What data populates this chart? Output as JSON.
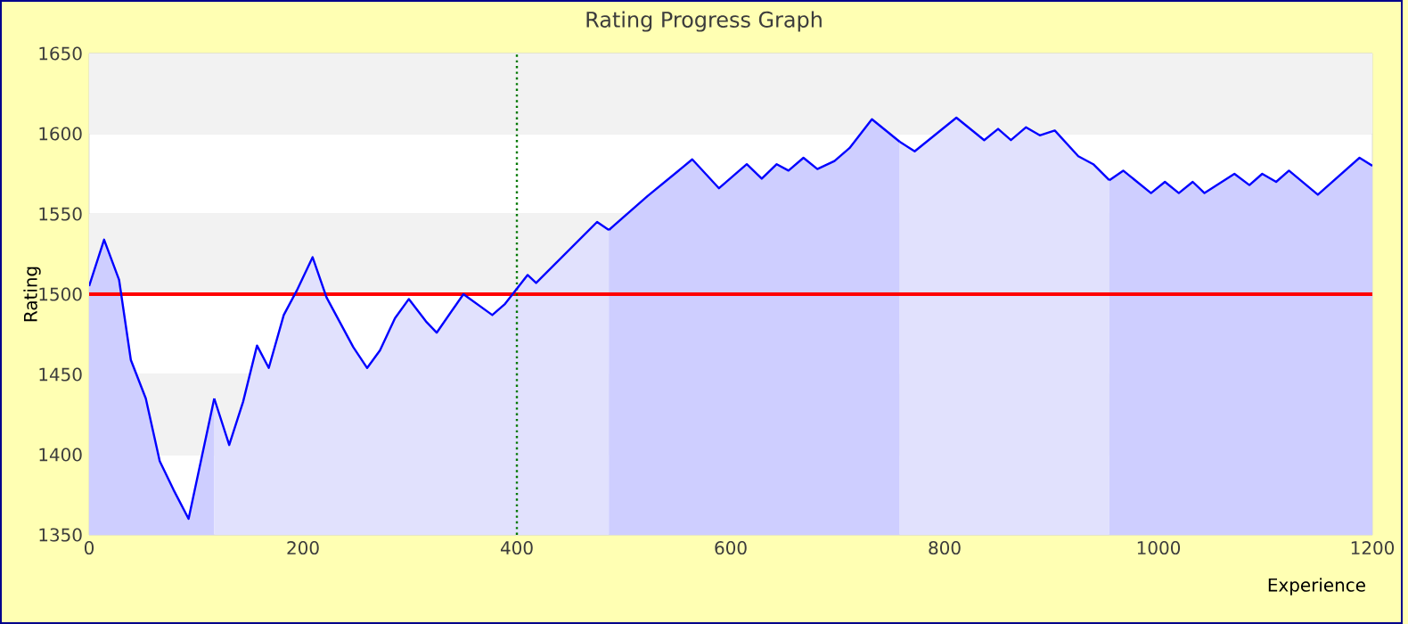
{
  "chart_data": {
    "type": "area",
    "title": "Rating Progress Graph",
    "xlabel": "Experience",
    "ylabel": "Rating",
    "color": "#0000ff",
    "series": [
      {
        "color": "#ceceff",
        "x": [
          0,
          14,
          28,
          39,
          53,
          66,
          79,
          93,
          117
        ],
        "values": [
          1505,
          1534,
          1509,
          1459,
          1435,
          1396,
          1378,
          1360,
          1435
        ]
      },
      {
        "color": "#e1e1fd",
        "x": [
          117,
          131,
          144,
          157,
          168,
          182,
          194,
          209,
          222,
          247,
          260,
          272,
          286,
          299,
          315,
          325,
          350,
          377,
          389,
          410,
          418,
          475,
          486
        ],
        "values": [
          1435,
          1406,
          1433,
          1468,
          1454,
          1487,
          1502,
          1523,
          1498,
          1467,
          1454,
          1465,
          1485,
          1497,
          1483,
          1476,
          1500,
          1487,
          1494,
          1512,
          1507,
          1545,
          1540
        ]
      },
      {
        "color": "#ceceff",
        "x": [
          486,
          522,
          564,
          589,
          615,
          629,
          643,
          654,
          668,
          681,
          697,
          711,
          732,
          758
        ],
        "values": [
          1540,
          1561,
          1584,
          1566,
          1581,
          1572,
          1581,
          1577,
          1585,
          1578,
          1583,
          1591,
          1609,
          1595
        ]
      },
      {
        "color": "#e1e1fd",
        "x": [
          758,
          772,
          811,
          837,
          850,
          862,
          876,
          889,
          903,
          925,
          939,
          954
        ],
        "values": [
          1595,
          1589,
          1610,
          1596,
          1603,
          1596,
          1604,
          1599,
          1602,
          1586,
          1581,
          1571
        ]
      },
      {
        "color": "#ceceff",
        "x": [
          954,
          967,
          993,
          1006,
          1019,
          1032,
          1043,
          1071,
          1085,
          1097,
          1110,
          1122,
          1149,
          1188,
          1200
        ],
        "values": [
          1571,
          1577,
          1563,
          1570,
          1563,
          1570,
          1563,
          1575,
          1568,
          1575,
          1570,
          1577,
          1562,
          1585,
          1580
        ]
      }
    ],
    "xlim": [
      0,
      1200
    ],
    "xticks": [
      0,
      200,
      400,
      600,
      800,
      1000,
      1200
    ],
    "ylim": [
      1350,
      1650
    ],
    "yticks": [
      1350,
      1400,
      1450,
      1500,
      1550,
      1600,
      1650
    ],
    "grid": "y",
    "ref_lines": [
      {
        "axis": "y",
        "value": 1500,
        "color": "#ff0000",
        "line_style": "solid"
      },
      {
        "axis": "x",
        "value": 400,
        "color": "#007700",
        "line_style": "dotted"
      }
    ],
    "bands": [
      {
        "axis": "y",
        "from": 1400,
        "to": 1450,
        "color": "#f2f2f2"
      },
      {
        "axis": "y",
        "from": 1500,
        "to": 1550,
        "color": "#f2f2f2"
      },
      {
        "axis": "y",
        "from": 1600,
        "to": 1650,
        "color": "#f2f2f2"
      }
    ]
  }
}
